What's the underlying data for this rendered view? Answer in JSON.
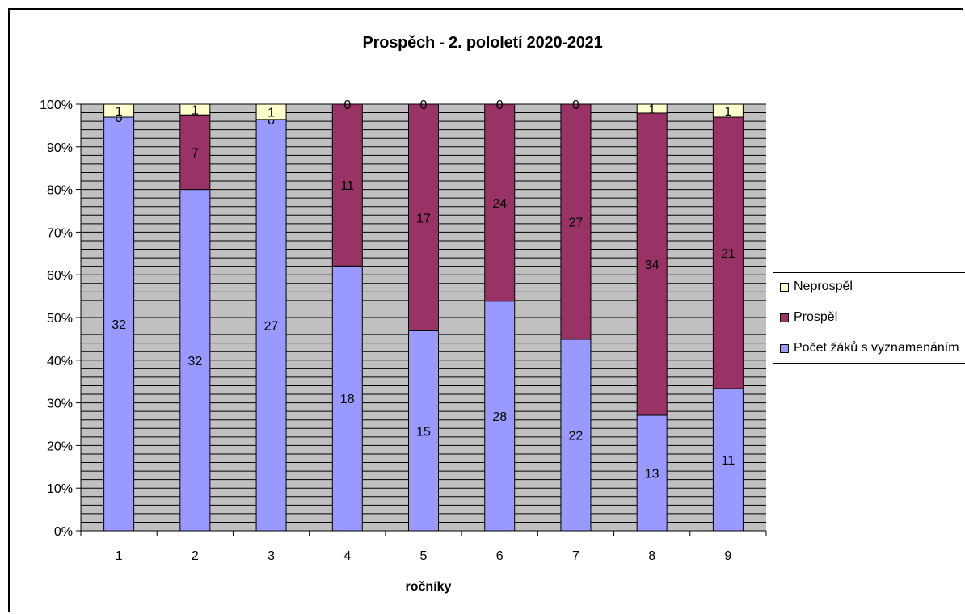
{
  "chart_data": {
    "type": "bar",
    "stacked": "percent",
    "title": "Prospěch - 2. pololetí 2020-2021",
    "xlabel": "ročníky",
    "ylabel": "",
    "categories": [
      "1",
      "2",
      "3",
      "4",
      "5",
      "6",
      "7",
      "8",
      "9"
    ],
    "y_ticks": [
      "0%",
      "10%",
      "20%",
      "30%",
      "40%",
      "50%",
      "60%",
      "70%",
      "80%",
      "90%",
      "100%"
    ],
    "ylim": [
      0,
      100
    ],
    "grid": true,
    "legend_position": "right",
    "series": [
      {
        "name": "Počet žáků s vyznamenáním",
        "color": "#9999ff",
        "values": [
          32,
          32,
          27,
          18,
          15,
          28,
          22,
          13,
          11
        ]
      },
      {
        "name": "Prospěl",
        "color": "#993366",
        "values": [
          0,
          7,
          0,
          11,
          17,
          24,
          27,
          34,
          21
        ]
      },
      {
        "name": "Neprospěl",
        "color": "#ffffcc",
        "values": [
          1,
          1,
          1,
          0,
          0,
          0,
          0,
          1,
          1
        ]
      }
    ],
    "plot_background": "#c0c0c0"
  }
}
